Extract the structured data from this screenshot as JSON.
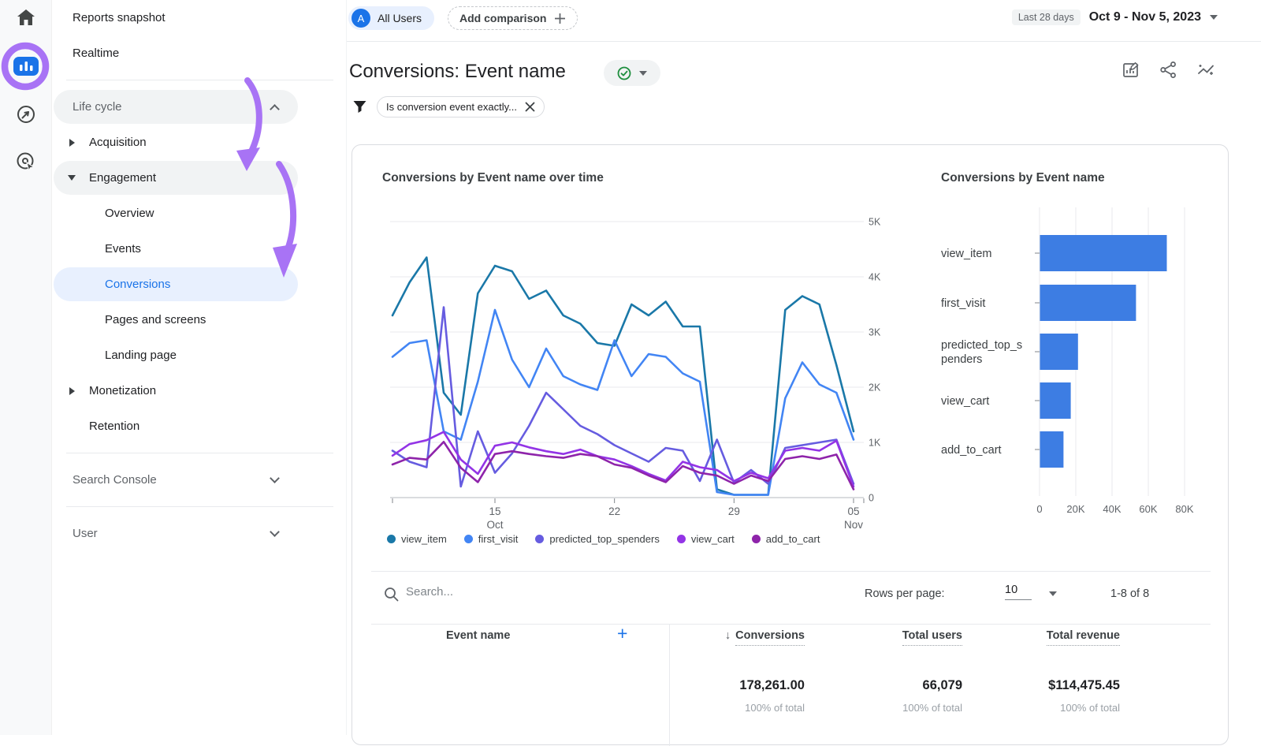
{
  "colors": {
    "primary_blue": "#1a73e8",
    "selected_item_bg": "#e8f0fe",
    "gray_pill_bg": "#f1f3f4",
    "annotation_purple": "#a873f5",
    "bar_blue": "#3d7de3",
    "check_green": "#1e8e3e"
  },
  "rail": {
    "icons": [
      {
        "name": "home-icon"
      },
      {
        "name": "reports-icon",
        "active": true,
        "highlighted_by_annotation": true
      },
      {
        "name": "explore-icon"
      },
      {
        "name": "advertising-icon"
      }
    ]
  },
  "sidebar": {
    "items": [
      {
        "type": "link",
        "label": "Reports snapshot",
        "level": 1
      },
      {
        "type": "link",
        "label": "Realtime",
        "level": 1
      },
      {
        "type": "divider"
      },
      {
        "type": "collapse",
        "label": "Life cycle",
        "level": 1,
        "pill": "gray",
        "chevron": "up",
        "muted": true
      },
      {
        "type": "link",
        "label": "Acquisition",
        "level": 2,
        "caret": "right"
      },
      {
        "type": "link",
        "label": "Engagement",
        "level": 2,
        "caret": "down",
        "pill": "gray"
      },
      {
        "type": "link",
        "label": "Overview",
        "level": 3
      },
      {
        "type": "link",
        "label": "Events",
        "level": 3
      },
      {
        "type": "link",
        "label": "Conversions",
        "level": 3,
        "pill": "blue",
        "selected": true
      },
      {
        "type": "link",
        "label": "Pages and screens",
        "level": 3
      },
      {
        "type": "link",
        "label": "Landing page",
        "level": 3
      },
      {
        "type": "link",
        "label": "Monetization",
        "level": 2,
        "caret": "right"
      },
      {
        "type": "link",
        "label": "Retention",
        "level": 2
      },
      {
        "type": "divider"
      },
      {
        "type": "collapse",
        "label": "Search Console",
        "level": 1,
        "chevron": "down",
        "muted": true
      },
      {
        "type": "divider"
      },
      {
        "type": "collapse",
        "label": "User",
        "level": 1,
        "chevron": "down",
        "muted": true
      }
    ]
  },
  "topbar": {
    "all_users": {
      "avatar_letter": "A",
      "label": "All Users"
    },
    "add_comparison_label": "Add comparison",
    "date_preset": "Last 28 days",
    "date_range": "Oct 9 - Nov 5, 2023"
  },
  "report": {
    "title": "Conversions: Event name",
    "filter_chip_label": "Is conversion event exactly...",
    "toolbar_icons": [
      "edit-report-icon",
      "share-icon",
      "insights-icon"
    ]
  },
  "chart_data": [
    {
      "type": "line",
      "title": "Conversions by Event name over time",
      "x": [
        "Oct 9",
        "Oct 10",
        "Oct 11",
        "Oct 12",
        "Oct 13",
        "Oct 14",
        "Oct 15",
        "Oct 16",
        "Oct 17",
        "Oct 18",
        "Oct 19",
        "Oct 20",
        "Oct 21",
        "Oct 22",
        "Oct 23",
        "Oct 24",
        "Oct 25",
        "Oct 26",
        "Oct 27",
        "Oct 28",
        "Oct 29",
        "Oct 30",
        "Oct 31",
        "Nov 1",
        "Nov 2",
        "Nov 3",
        "Nov 4",
        "Nov 5"
      ],
      "x_tick_labels": [
        {
          "index": 6,
          "label": "15",
          "sub": "Oct"
        },
        {
          "index": 13,
          "label": "22"
        },
        {
          "index": 20,
          "label": "29"
        },
        {
          "index": 27,
          "label": "05",
          "sub": "Nov"
        }
      ],
      "ylim": [
        0,
        5000
      ],
      "y_ticks": [
        "0",
        "1K",
        "2K",
        "3K",
        "4K",
        "5K"
      ],
      "grid": "on",
      "legend_position": "bottom",
      "series": [
        {
          "name": "view_item",
          "color": "#1a78a8",
          "values": [
            3300,
            3900,
            4350,
            1900,
            1500,
            3700,
            4200,
            4100,
            3600,
            3750,
            3300,
            3150,
            2800,
            2750,
            3500,
            3300,
            3550,
            3100,
            3100,
            150,
            50,
            50,
            50,
            3400,
            3650,
            3500,
            2400,
            1200
          ]
        },
        {
          "name": "first_visit",
          "color": "#4285f4",
          "values": [
            2550,
            2800,
            2850,
            1200,
            1050,
            2100,
            3400,
            2500,
            2000,
            2700,
            2200,
            2050,
            1950,
            2850,
            2200,
            2600,
            2550,
            2250,
            2100,
            100,
            50,
            50,
            50,
            1800,
            2450,
            2050,
            1900,
            1050
          ]
        },
        {
          "name": "predicted_top_spenders",
          "color": "#665ce0",
          "values": [
            850,
            650,
            550,
            3450,
            200,
            1200,
            450,
            800,
            1300,
            1900,
            1600,
            1300,
            1150,
            950,
            800,
            650,
            900,
            850,
            300,
            1050,
            270,
            500,
            250,
            900,
            950,
            1000,
            1050,
            250
          ]
        },
        {
          "name": "view_cart",
          "color": "#9334e6",
          "values": [
            760,
            970,
            1040,
            1190,
            690,
            430,
            940,
            1000,
            910,
            840,
            790,
            870,
            750,
            690,
            570,
            430,
            310,
            650,
            550,
            500,
            300,
            450,
            350,
            850,
            900,
            850,
            1030,
            200
          ]
        },
        {
          "name": "add_to_cart",
          "color": "#8e24aa",
          "values": [
            600,
            720,
            690,
            1010,
            540,
            280,
            790,
            840,
            790,
            750,
            720,
            790,
            750,
            600,
            540,
            400,
            280,
            570,
            450,
            400,
            250,
            400,
            300,
            700,
            750,
            700,
            780,
            150
          ]
        }
      ]
    },
    {
      "type": "bar",
      "title": "Conversions by Event name",
      "orientation": "horizontal",
      "categories": [
        "view_item",
        "first_visit",
        "predicted_top_spenders",
        "view_cart",
        "add_to_cart"
      ],
      "values": [
        70000,
        53000,
        21000,
        17000,
        13000
      ],
      "xlim": [
        0,
        80000
      ],
      "x_ticks": [
        "0",
        "20K",
        "40K",
        "60K",
        "80K"
      ],
      "grid": "on",
      "bar_color": "#3d7de3"
    }
  ],
  "table": {
    "search_placeholder": "Search...",
    "rows_per_page_label": "Rows per page:",
    "rows_per_page_value": "10",
    "pagination": "1-8 of 8",
    "columns": [
      {
        "label": "Event name"
      },
      {
        "label": "Conversions",
        "sorted": "desc"
      },
      {
        "label": "Total users"
      },
      {
        "label": "Total revenue"
      }
    ],
    "totals": {
      "conversions": "178,261.00",
      "conversions_pct": "100% of total",
      "total_users": "66,079",
      "total_users_pct": "100% of total",
      "total_revenue": "$114,475.45",
      "total_revenue_pct": "100% of total"
    }
  }
}
